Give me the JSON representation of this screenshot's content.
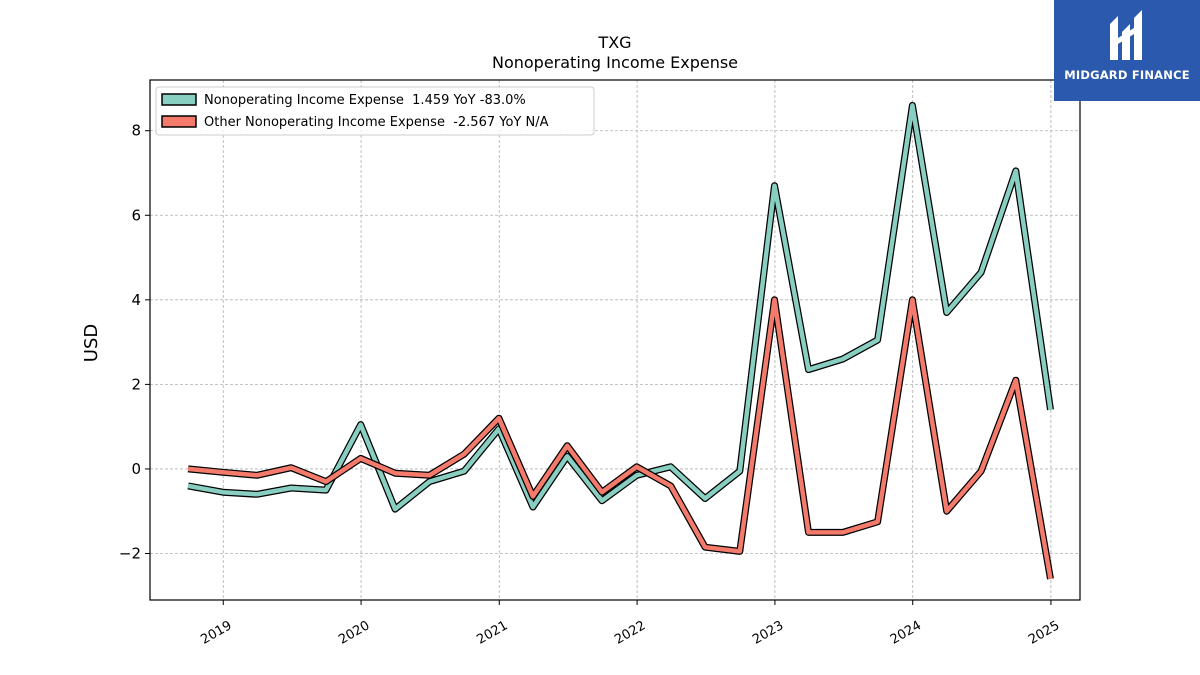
{
  "header": {
    "ticker": "TXG",
    "subtitle": "Nonoperating Income Expense"
  },
  "logo": {
    "text": "MIDGARD FINANCE",
    "icon": "midgard-logo-icon",
    "color": "#2b59ad"
  },
  "chart_data": {
    "type": "line",
    "title": "TXG",
    "subtitle": "Nonoperating Income Expense",
    "ylabel": "USD",
    "xlabel": "",
    "ylim": [
      -3.1,
      9.2
    ],
    "yticks": [
      -2,
      0,
      2,
      4,
      6,
      8
    ],
    "ytick_labels": [
      "−2",
      "0",
      "2",
      "4",
      "6",
      "8"
    ],
    "xlim": [
      "2018-06-21",
      "2025-03-19"
    ],
    "xticks": [
      "2019-01-01",
      "2020-01-01",
      "2021-01-01",
      "2022-01-01",
      "2023-01-01",
      "2024-01-01",
      "2025-01-01"
    ],
    "xtick_labels": [
      "2019",
      "2020",
      "2021",
      "2022",
      "2023",
      "2024",
      "2025"
    ],
    "grid": true,
    "legend_position": "top-left",
    "x": [
      "2018-09-30",
      "2018-12-31",
      "2019-03-31",
      "2019-06-30",
      "2019-09-30",
      "2019-12-31",
      "2020-03-31",
      "2020-06-30",
      "2020-09-30",
      "2020-12-31",
      "2021-03-31",
      "2021-06-30",
      "2021-09-30",
      "2021-12-31",
      "2022-03-31",
      "2022-06-30",
      "2022-09-30",
      "2022-12-31",
      "2023-03-31",
      "2023-06-30",
      "2023-09-30",
      "2023-12-31",
      "2024-03-31",
      "2024-06-30",
      "2024-09-30",
      "2024-12-31"
    ],
    "series": [
      {
        "name": "Nonoperating Income Expense",
        "legend": "Nonoperating Income Expense  1.459 YoY -83.0%",
        "color": "#88cfc2",
        "values": [
          -0.4,
          -0.55,
          -0.6,
          -0.45,
          -0.5,
          1.05,
          -0.95,
          -0.3,
          -0.05,
          0.95,
          -0.9,
          0.3,
          -0.75,
          -0.15,
          0.05,
          -0.7,
          -0.05,
          6.7,
          2.35,
          2.6,
          3.05,
          8.6,
          3.7,
          4.65,
          7.05,
          1.4
        ]
      },
      {
        "name": "Other Nonoperating Income Expense",
        "legend": "Other Nonoperating Income Expense  -2.567 YoY N/A",
        "color": "#f47b6b",
        "values": [
          0.0,
          -0.08,
          -0.15,
          0.03,
          -0.3,
          0.25,
          -0.1,
          -0.15,
          0.35,
          1.2,
          -0.65,
          0.55,
          -0.55,
          0.05,
          -0.4,
          -1.85,
          -1.95,
          4.0,
          -1.5,
          -1.5,
          -1.25,
          4.0,
          -1.0,
          -0.05,
          2.1,
          -2.6
        ]
      }
    ]
  }
}
